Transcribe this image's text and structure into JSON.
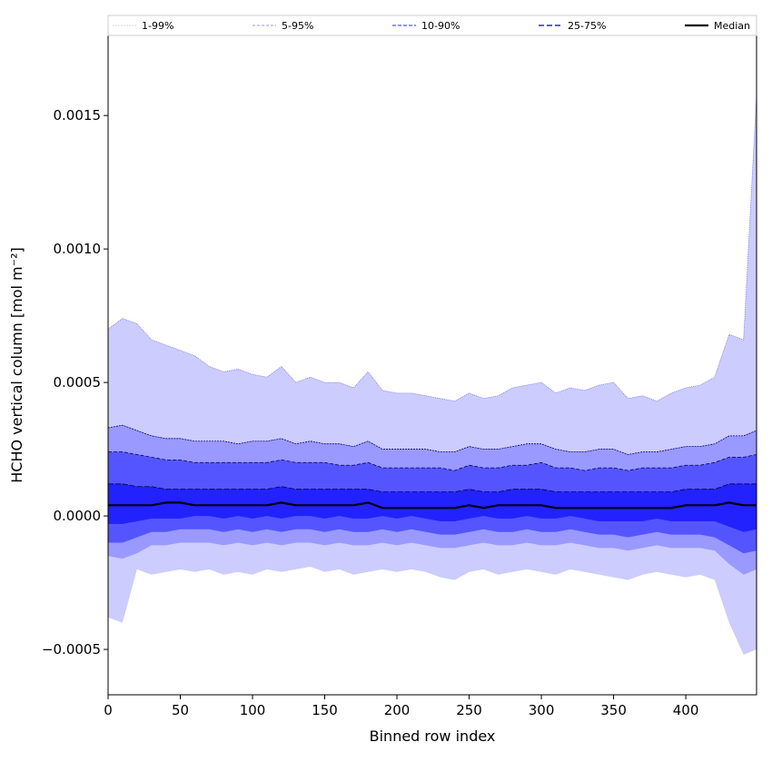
{
  "chart_data": {
    "type": "area",
    "title": "",
    "xlabel": "Binned row index",
    "ylabel": "HCHO vertical column [mol m⁻²]",
    "xlim": [
      0,
      449
    ],
    "ylim": [
      -0.00067,
      0.0018
    ],
    "value_multiplier": 0.0001,
    "xticks": [
      0,
      50,
      100,
      150,
      200,
      250,
      300,
      350,
      400
    ],
    "yticks": [
      {
        "v": -0.0005,
        "label": "−0.0005"
      },
      {
        "v": 0,
        "label": "0.0000"
      },
      {
        "v": 0.0005,
        "label": "0.0005"
      },
      {
        "v": 0.001,
        "label": "0.0010"
      },
      {
        "v": 0.0015,
        "label": "0.0015"
      }
    ],
    "legend_position": "top",
    "x": [
      0,
      10,
      20,
      30,
      40,
      50,
      60,
      70,
      80,
      90,
      100,
      110,
      120,
      130,
      140,
      150,
      160,
      170,
      180,
      190,
      200,
      210,
      220,
      230,
      240,
      250,
      260,
      270,
      280,
      290,
      300,
      310,
      320,
      330,
      340,
      350,
      360,
      370,
      380,
      390,
      400,
      410,
      420,
      430,
      440,
      449
    ],
    "bands": [
      {
        "name": "1-99%",
        "fill": "#ccccff",
        "line": "#7777ee",
        "dash": "1,1",
        "upper": [
          7.0,
          7.4,
          7.2,
          6.6,
          6.4,
          6.2,
          6.0,
          5.6,
          5.4,
          5.5,
          5.3,
          5.2,
          5.6,
          5.0,
          5.2,
          5.0,
          5.0,
          4.8,
          5.4,
          4.7,
          4.6,
          4.6,
          4.5,
          4.4,
          4.3,
          4.6,
          4.4,
          4.5,
          4.8,
          4.9,
          5.0,
          4.6,
          4.8,
          4.7,
          4.9,
          5.0,
          4.4,
          4.5,
          4.3,
          4.6,
          4.8,
          4.9,
          5.2,
          6.8,
          6.6,
          15.8
        ],
        "lower": [
          -3.8,
          -4.0,
          -2.0,
          -2.2,
          -2.1,
          -2.0,
          -2.1,
          -2.0,
          -2.2,
          -2.1,
          -2.2,
          -2.0,
          -2.1,
          -2.0,
          -1.9,
          -2.1,
          -2.0,
          -2.2,
          -2.1,
          -2.0,
          -2.1,
          -2.0,
          -2.1,
          -2.3,
          -2.4,
          -2.1,
          -2.0,
          -2.2,
          -2.1,
          -2.0,
          -2.1,
          -2.2,
          -2.0,
          -2.1,
          -2.2,
          -2.3,
          -2.4,
          -2.2,
          -2.1,
          -2.2,
          -2.3,
          -2.2,
          -2.4,
          -4.0,
          -5.2,
          -5.0
        ]
      },
      {
        "name": "5-95%",
        "fill": "#9999ff",
        "line": "#000080",
        "dash": "2,1",
        "upper": [
          3.3,
          3.4,
          3.2,
          3.0,
          2.9,
          2.9,
          2.8,
          2.8,
          2.8,
          2.7,
          2.8,
          2.8,
          2.9,
          2.7,
          2.8,
          2.7,
          2.7,
          2.6,
          2.8,
          2.5,
          2.5,
          2.5,
          2.5,
          2.4,
          2.4,
          2.6,
          2.5,
          2.5,
          2.6,
          2.7,
          2.7,
          2.5,
          2.4,
          2.4,
          2.5,
          2.5,
          2.3,
          2.4,
          2.4,
          2.5,
          2.6,
          2.6,
          2.7,
          3.0,
          3.0,
          3.2
        ],
        "lower": [
          -1.5,
          -1.6,
          -1.4,
          -1.1,
          -1.1,
          -1.0,
          -1.0,
          -1.0,
          -1.1,
          -1.0,
          -1.1,
          -1.0,
          -1.1,
          -1.0,
          -1.0,
          -1.1,
          -1.0,
          -1.1,
          -1.1,
          -1.0,
          -1.1,
          -1.0,
          -1.1,
          -1.2,
          -1.2,
          -1.1,
          -1.0,
          -1.1,
          -1.1,
          -1.0,
          -1.1,
          -1.1,
          -1.0,
          -1.1,
          -1.2,
          -1.2,
          -1.3,
          -1.2,
          -1.1,
          -1.2,
          -1.2,
          -1.2,
          -1.3,
          -1.8,
          -2.2,
          -2.0
        ]
      },
      {
        "name": "10-90%",
        "fill": "#5555ff",
        "line": "#000060",
        "dash": "4,2",
        "upper": [
          2.4,
          2.4,
          2.3,
          2.2,
          2.1,
          2.1,
          2.0,
          2.0,
          2.0,
          2.0,
          2.0,
          2.0,
          2.1,
          2.0,
          2.0,
          2.0,
          1.9,
          1.9,
          2.0,
          1.8,
          1.8,
          1.8,
          1.8,
          1.8,
          1.7,
          1.9,
          1.8,
          1.8,
          1.9,
          1.9,
          2.0,
          1.8,
          1.8,
          1.7,
          1.8,
          1.8,
          1.7,
          1.8,
          1.8,
          1.8,
          1.9,
          1.9,
          2.0,
          2.2,
          2.2,
          2.3
        ],
        "lower": [
          -1.0,
          -1.0,
          -0.8,
          -0.6,
          -0.6,
          -0.5,
          -0.5,
          -0.5,
          -0.6,
          -0.5,
          -0.6,
          -0.5,
          -0.6,
          -0.5,
          -0.5,
          -0.6,
          -0.5,
          -0.6,
          -0.6,
          -0.5,
          -0.6,
          -0.5,
          -0.6,
          -0.7,
          -0.7,
          -0.6,
          -0.5,
          -0.6,
          -0.6,
          -0.5,
          -0.6,
          -0.6,
          -0.5,
          -0.6,
          -0.7,
          -0.7,
          -0.8,
          -0.7,
          -0.6,
          -0.7,
          -0.7,
          -0.7,
          -0.8,
          -1.1,
          -1.4,
          -1.3
        ]
      },
      {
        "name": "25-75%",
        "fill": "#2222ff",
        "line": "#000040",
        "dash": "6,2",
        "upper": [
          1.2,
          1.2,
          1.1,
          1.1,
          1.0,
          1.0,
          1.0,
          1.0,
          1.0,
          1.0,
          1.0,
          1.0,
          1.1,
          1.0,
          1.0,
          1.0,
          1.0,
          1.0,
          1.0,
          0.9,
          0.9,
          0.9,
          0.9,
          0.9,
          0.9,
          1.0,
          0.9,
          0.9,
          1.0,
          1.0,
          1.0,
          0.9,
          0.9,
          0.9,
          0.9,
          0.9,
          0.9,
          0.9,
          0.9,
          0.9,
          1.0,
          1.0,
          1.0,
          1.2,
          1.2,
          1.2
        ],
        "lower": [
          -0.3,
          -0.3,
          -0.2,
          -0.1,
          -0.1,
          -0.1,
          0,
          0,
          -0.1,
          0,
          -0.1,
          0,
          -0.1,
          0,
          0,
          -0.1,
          0,
          -0.1,
          -0.1,
          0,
          -0.1,
          0,
          -0.1,
          -0.2,
          -0.2,
          -0.1,
          0,
          -0.1,
          -0.1,
          0,
          -0.1,
          -0.1,
          0,
          -0.1,
          -0.2,
          -0.2,
          -0.2,
          -0.2,
          -0.1,
          -0.2,
          -0.2,
          -0.2,
          -0.2,
          -0.4,
          -0.6,
          -0.5
        ]
      }
    ],
    "median": {
      "name": "Median",
      "color": "#000000",
      "values": [
        0.4,
        0.4,
        0.4,
        0.4,
        0.5,
        0.5,
        0.4,
        0.4,
        0.4,
        0.4,
        0.4,
        0.4,
        0.5,
        0.4,
        0.4,
        0.4,
        0.4,
        0.4,
        0.5,
        0.3,
        0.3,
        0.3,
        0.3,
        0.3,
        0.3,
        0.4,
        0.3,
        0.4,
        0.4,
        0.4,
        0.4,
        0.3,
        0.3,
        0.3,
        0.3,
        0.3,
        0.3,
        0.3,
        0.3,
        0.3,
        0.4,
        0.4,
        0.4,
        0.5,
        0.4,
        0.4
      ]
    }
  }
}
